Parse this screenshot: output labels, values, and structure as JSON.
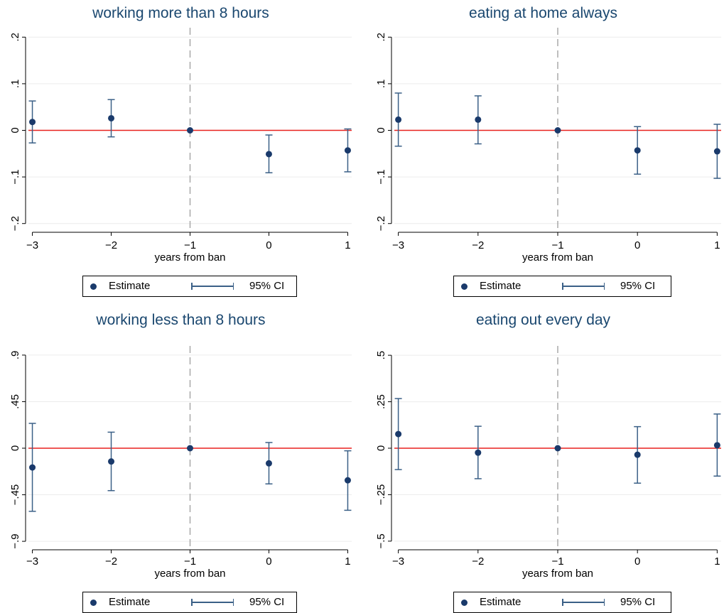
{
  "colors": {
    "title": "#1a476f",
    "point": "#1a3a6b",
    "ci": "#3b6087",
    "zero_line": "#e8211e",
    "ref_line": "#a8a8a8",
    "grid": "#ececec"
  },
  "legend": {
    "estimate_label": "Estimate",
    "ci_label": "95% CI"
  },
  "chart_data": [
    {
      "type": "scatter",
      "title": "working more than 8 hours",
      "xlabel": "years from ban",
      "ylabel": "",
      "x_ticks": [
        -3,
        -2,
        -1,
        0,
        1
      ],
      "x_tick_labels": [
        "−3",
        "−2",
        "−1",
        "0",
        "1"
      ],
      "xlim": [
        -3.05,
        1.05
      ],
      "y_ticks": [
        -0.2,
        -0.1,
        0,
        0.1,
        0.2
      ],
      "y_tick_labels": [
        "−.2",
        "−.1",
        "0",
        ".1",
        ".2"
      ],
      "ylim": [
        -0.205,
        0.205
      ],
      "reference_x": -1,
      "points": [
        {
          "x": -3,
          "y": 0.018,
          "ci_low": -0.027,
          "ci_high": 0.063
        },
        {
          "x": -2,
          "y": 0.026,
          "ci_low": -0.014,
          "ci_high": 0.066
        },
        {
          "x": -1,
          "y": 0.0,
          "ci_low": 0.0,
          "ci_high": 0.0
        },
        {
          "x": 0,
          "y": -0.051,
          "ci_low": -0.091,
          "ci_high": -0.01
        },
        {
          "x": 1,
          "y": -0.043,
          "ci_low": -0.089,
          "ci_high": 0.003
        }
      ],
      "legend": [
        "Estimate",
        "95% CI"
      ],
      "grid": true
    },
    {
      "type": "scatter",
      "title": "eating at home always",
      "xlabel": "years from ban",
      "ylabel": "",
      "x_ticks": [
        -3,
        -2,
        -1,
        0,
        1
      ],
      "x_tick_labels": [
        "−3",
        "−2",
        "−1",
        "0",
        "1"
      ],
      "xlim": [
        -3.05,
        1.05
      ],
      "y_ticks": [
        -0.2,
        -0.1,
        0,
        0.1,
        0.2
      ],
      "y_tick_labels": [
        "−.2",
        "−.1",
        "0",
        ".1",
        ".2"
      ],
      "ylim": [
        -0.205,
        0.205
      ],
      "reference_x": -1,
      "points": [
        {
          "x": -3,
          "y": 0.023,
          "ci_low": -0.034,
          "ci_high": 0.08
        },
        {
          "x": -2,
          "y": 0.023,
          "ci_low": -0.029,
          "ci_high": 0.074
        },
        {
          "x": -1,
          "y": 0.0,
          "ci_low": 0.0,
          "ci_high": 0.0
        },
        {
          "x": 0,
          "y": -0.043,
          "ci_low": -0.094,
          "ci_high": 0.008
        },
        {
          "x": 1,
          "y": -0.045,
          "ci_low": -0.103,
          "ci_high": 0.013
        }
      ],
      "legend": [
        "Estimate",
        "95% CI"
      ],
      "grid": true
    },
    {
      "type": "scatter",
      "title": "working less than 8 hours",
      "xlabel": "years from ban",
      "ylabel": "",
      "x_ticks": [
        -3,
        -2,
        -1,
        0,
        1
      ],
      "x_tick_labels": [
        "−3",
        "−2",
        "−1",
        "0",
        "1"
      ],
      "xlim": [
        -3.05,
        1.05
      ],
      "y_ticks": [
        -0.9,
        -0.45,
        0,
        0.45,
        0.9
      ],
      "y_tick_labels": [
        "−.9",
        "−.45",
        "0",
        ".45",
        ".9"
      ],
      "ylim": [
        -0.92,
        0.92
      ],
      "reference_x": -1,
      "points": [
        {
          "x": -3,
          "y": -0.186,
          "ci_low": -0.61,
          "ci_high": 0.24
        },
        {
          "x": -2,
          "y": -0.128,
          "ci_low": -0.41,
          "ci_high": 0.155
        },
        {
          "x": -1,
          "y": 0.0,
          "ci_low": 0.0,
          "ci_high": 0.0
        },
        {
          "x": 0,
          "y": -0.146,
          "ci_low": -0.345,
          "ci_high": 0.055
        },
        {
          "x": 1,
          "y": -0.31,
          "ci_low": -0.6,
          "ci_high": -0.025
        }
      ],
      "legend": [
        "Estimate",
        "95% CI"
      ],
      "grid": true
    },
    {
      "type": "scatter",
      "title": "eating out every day",
      "xlabel": "years from ban",
      "ylabel": "",
      "x_ticks": [
        -3,
        -2,
        -1,
        0,
        1
      ],
      "x_tick_labels": [
        "−3",
        "−2",
        "−1",
        "0",
        "1"
      ],
      "xlim": [
        -3.05,
        1.05
      ],
      "y_ticks": [
        -0.5,
        -0.25,
        0,
        0.25,
        0.5
      ],
      "y_tick_labels": [
        "−.5",
        "−.25",
        "0",
        ".25",
        ".5"
      ],
      "ylim": [
        -0.512,
        0.512
      ],
      "reference_x": -1,
      "points": [
        {
          "x": -3,
          "y": 0.076,
          "ci_low": -0.115,
          "ci_high": 0.267
        },
        {
          "x": -2,
          "y": -0.024,
          "ci_low": -0.164,
          "ci_high": 0.118
        },
        {
          "x": -1,
          "y": 0.0,
          "ci_low": 0.0,
          "ci_high": 0.0
        },
        {
          "x": 0,
          "y": -0.035,
          "ci_low": -0.188,
          "ci_high": 0.116
        },
        {
          "x": 1,
          "y": 0.016,
          "ci_low": -0.15,
          "ci_high": 0.184
        }
      ],
      "legend": [
        "Estimate",
        "95% CI"
      ],
      "grid": true
    }
  ]
}
